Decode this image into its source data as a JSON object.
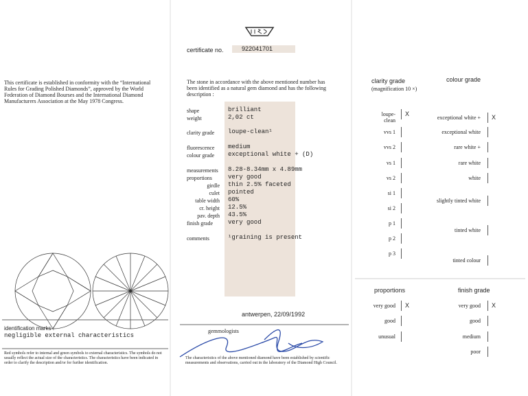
{
  "left": {
    "intro": "This certificate is established in conformity with the “International Rules for Grading Polished Diamonds”, approved by the World Federation of Diamond Bourses and the International Diamond Manufacturers Association at the May 1978 Congress.",
    "identification_label": "identification marks :",
    "identification_value": "negligible external characteristics",
    "footnote": "Red symbols refer to internal and green symbols to external characteristics. The symbols do not usually reflect the actual size of the characteristics. The characteristics have been indicated in order to clarify the description and/or for further identification."
  },
  "middle": {
    "certificate_label": "certificate no.",
    "certificate_number": "922041701",
    "description_intro": "The stone in accordance with the above mentioned number has been identified as a natural gem diamond and has the following description :",
    "rows": [
      {
        "label": "shape",
        "value": "brilliant"
      },
      {
        "label": "weight",
        "value": "2,02 ct"
      },
      {
        "label": "clarity grade",
        "value": "loupe-clean¹"
      },
      {
        "label": "fluorescence",
        "value": "medium"
      },
      {
        "label": "colour grade",
        "value": "exceptional white + (D)"
      },
      {
        "label": "measurements",
        "value": "8.28-8.34mm x 4.89mm"
      },
      {
        "label": "proportions",
        "value": "very good"
      },
      {
        "label": "girdle",
        "value": "thin 2.5% faceted"
      },
      {
        "label": "culet",
        "value": "pointed"
      },
      {
        "label": "table width",
        "value": "60%"
      },
      {
        "label": "cr. height",
        "value": "12.5%"
      },
      {
        "label": "pav. depth",
        "value": "43.5%"
      },
      {
        "label": "finish grade",
        "value": "very good"
      },
      {
        "label": "comments",
        "value": "¹graining is present"
      }
    ],
    "place_date": "antwerpen, 22/09/1992",
    "signature_label": "gemmologists",
    "footnote": "The characteristics of the above mentioned diamond have been established by scientific measurements and observations, carried out in the laboratory of the Diamond High Council."
  },
  "right": {
    "clarity_title": "clarity grade",
    "clarity_subtitle": "(magnification 10 ×)",
    "colour_title": "colour grade",
    "clarity_scale": [
      {
        "label": "loupe-clean",
        "mark": "X"
      },
      {
        "label": "vvs 1"
      },
      {
        "label": "vvs 2"
      },
      {
        "label": "vs 1"
      },
      {
        "label": "vs 2"
      },
      {
        "label": "si 1"
      },
      {
        "label": "si 2"
      },
      {
        "label": "p 1"
      },
      {
        "label": "p 2"
      },
      {
        "label": "p 3"
      }
    ],
    "colour_scale": [
      {
        "label": "exceptional white +",
        "mark": "X"
      },
      {
        "label": "exceptional white"
      },
      {
        "label": "rare white +"
      },
      {
        "label": "rare white"
      },
      {
        "label": "white"
      },
      {
        "label": "slightly tinted white"
      },
      {
        "label": "tinted white"
      },
      {
        "label": "tinted colour"
      }
    ],
    "proportions_title": "proportions",
    "proportions_scale": [
      {
        "label": "very good",
        "mark": "X"
      },
      {
        "label": "good"
      },
      {
        "label": "unusual"
      }
    ],
    "finish_title": "finish grade",
    "finish_scale": [
      {
        "label": "very good",
        "mark": "X"
      },
      {
        "label": "good"
      },
      {
        "label": "medium"
      },
      {
        "label": "poor"
      }
    ]
  }
}
